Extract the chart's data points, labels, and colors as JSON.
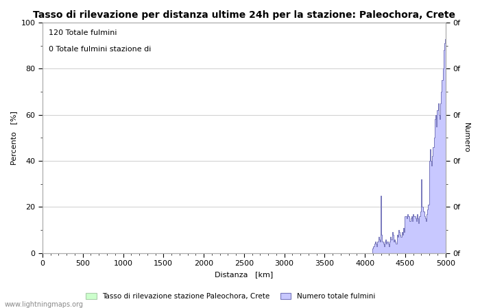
{
  "title": "Tasso di rilevazione per distanza ultime 24h per la stazione: Paleochora, Crete",
  "xlabel": "Distanza   [km]",
  "ylabel_left": "Percento   [%]",
  "ylabel_right": "Numero",
  "annotation_line1": "120 Totale fulmini",
  "annotation_line2": "0 Totale fulmini stazione di",
  "legend_label1": "Tasso di rilevazione stazione Paleochora, Crete",
  "legend_label2": "Numero totale fulmini",
  "watermark": "www.lightningmaps.org",
  "xlim": [
    0,
    5000
  ],
  "ylim": [
    0,
    100
  ],
  "xticks": [
    0,
    500,
    1000,
    1500,
    2000,
    2500,
    3000,
    3500,
    4000,
    4500,
    5000
  ],
  "yticks_left": [
    0,
    20,
    40,
    60,
    80,
    100
  ],
  "right_yticks": [
    0,
    20,
    40,
    60,
    80,
    100
  ],
  "right_yticklabels": [
    "0f",
    "0f",
    "0f",
    "0f",
    "0f",
    "0f"
  ],
  "bar_color": "#c8c8ff",
  "bar_edge_color": "#7777bb",
  "green_bar_color": "#ccffcc",
  "green_bar_edge_color": "#99cc99",
  "title_fontsize": 10,
  "label_fontsize": 8,
  "tick_fontsize": 8,
  "annotation_fontsize": 8,
  "spike_x": [
    4100,
    4110,
    4120,
    4130,
    4140,
    4150,
    4160,
    4170,
    4180,
    4190,
    4200,
    4210,
    4220,
    4230,
    4240,
    4250,
    4260,
    4270,
    4280,
    4290,
    4300,
    4310,
    4320,
    4330,
    4340,
    4350,
    4360,
    4370,
    4380,
    4390,
    4400,
    4410,
    4420,
    4430,
    4440,
    4450,
    4460,
    4470,
    4480,
    4490,
    4500,
    4510,
    4520,
    4530,
    4540,
    4550,
    4560,
    4570,
    4580,
    4590,
    4600,
    4610,
    4620,
    4630,
    4640,
    4650,
    4660,
    4670,
    4680,
    4690,
    4700,
    4710,
    4720,
    4730,
    4740,
    4750,
    4760,
    4770,
    4780,
    4790,
    4800,
    4810,
    4820,
    4830,
    4840,
    4850,
    4860,
    4870,
    4880,
    4890,
    4900,
    4910,
    4920,
    4930,
    4940,
    4950,
    4960,
    4970,
    4980,
    4990,
    5000
  ],
  "spike_y": [
    2,
    3,
    4,
    5,
    4,
    3,
    5,
    7,
    6,
    5,
    25,
    8,
    5,
    4,
    3,
    5,
    6,
    4,
    5,
    4,
    3,
    5,
    7,
    6,
    9,
    8,
    5,
    6,
    5,
    4,
    8,
    7,
    10,
    9,
    8,
    7,
    9,
    8,
    11,
    9,
    16,
    16,
    15,
    17,
    16,
    16,
    14,
    15,
    16,
    14,
    17,
    16,
    16,
    15,
    14,
    17,
    15,
    13,
    16,
    18,
    32,
    20,
    20,
    18,
    16,
    15,
    14,
    17,
    19,
    21,
    40,
    45,
    40,
    38,
    42,
    46,
    50,
    58,
    60,
    55,
    62,
    65,
    60,
    58,
    65,
    70,
    75,
    80,
    88,
    91,
    93
  ]
}
